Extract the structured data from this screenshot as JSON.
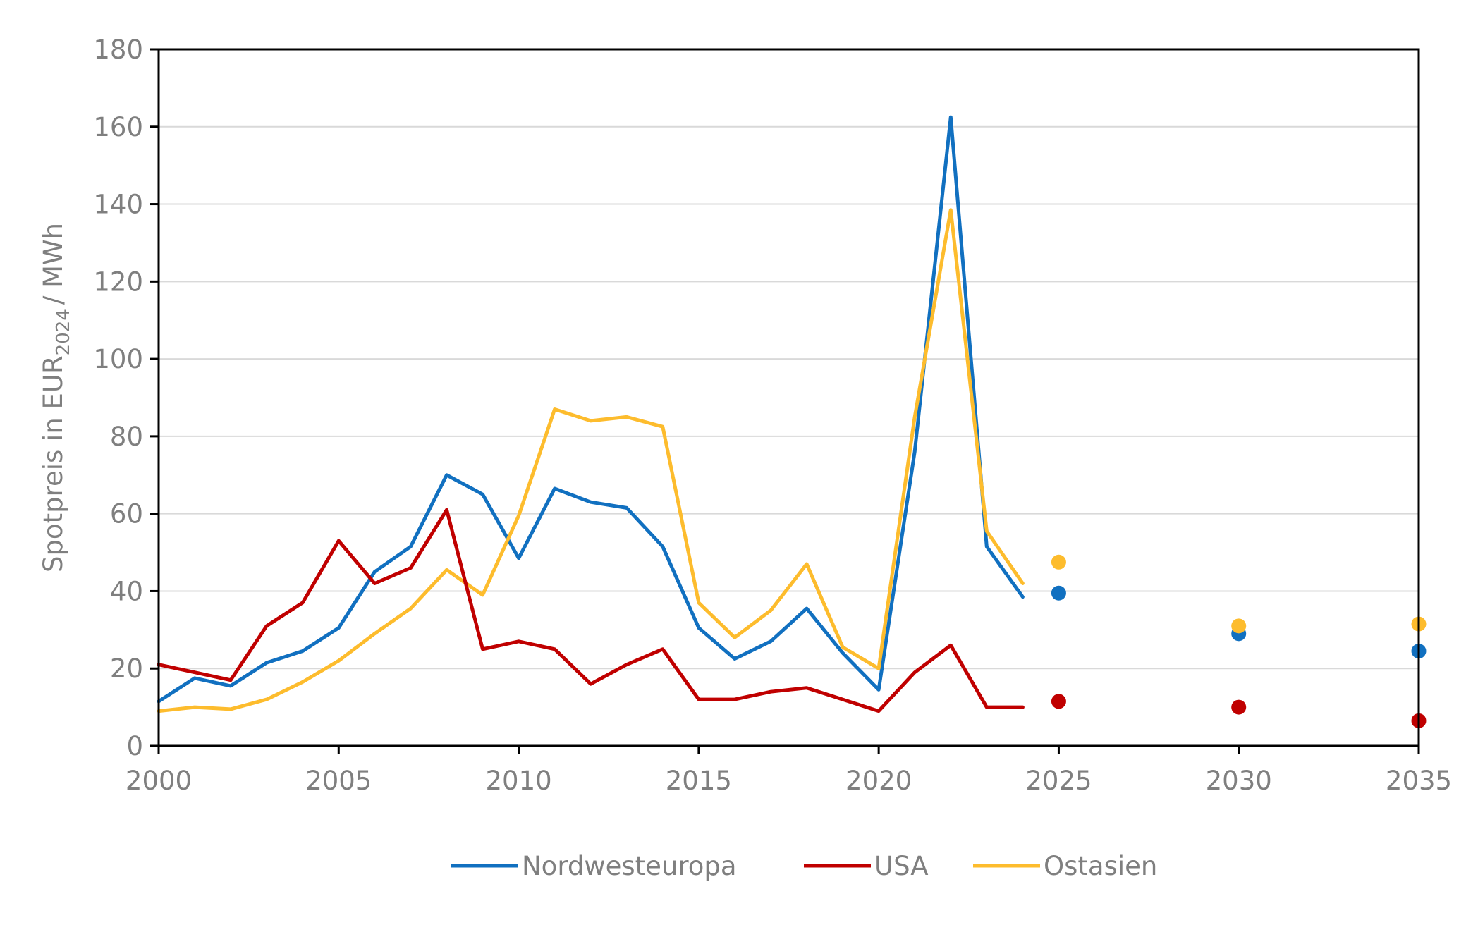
{
  "chart_data": {
    "type": "line",
    "title": "",
    "xlabel": "",
    "ylabel": {
      "prefix": "Spotpreis in EUR",
      "subscript": "2024",
      "suffix": "/ MWh"
    },
    "xlim": [
      2000,
      2035
    ],
    "ylim": [
      0,
      180
    ],
    "xticks": [
      "2000",
      "2005",
      "2010",
      "2015",
      "2020",
      "2025",
      "2030",
      "2035"
    ],
    "yticks": [
      "0",
      "20",
      "40",
      "60",
      "80",
      "100",
      "120",
      "140",
      "160",
      "180"
    ],
    "grid": "horizontal",
    "legend_position": "bottom",
    "x": [
      2000,
      2001,
      2002,
      2003,
      2004,
      2005,
      2006,
      2007,
      2008,
      2009,
      2010,
      2011,
      2012,
      2013,
      2014,
      2015,
      2016,
      2017,
      2018,
      2019,
      2020,
      2021,
      2022,
      2023,
      2024
    ],
    "series": [
      {
        "name": "Nordwesteuropa",
        "color": "#1170c0",
        "values": [
          11.5,
          17.5,
          15.5,
          21.5,
          24.5,
          30.5,
          45,
          51.5,
          70,
          65,
          48.5,
          66.5,
          63,
          61.5,
          51.5,
          30.5,
          22.5,
          27,
          35.5,
          24,
          14.5,
          76,
          162.5,
          51.5,
          38.5
        ],
        "projections": [
          {
            "x": 2025,
            "y": 39.5
          },
          {
            "x": 2030,
            "y": 29
          },
          {
            "x": 2035,
            "y": 24.5
          }
        ]
      },
      {
        "name": "USA",
        "color": "#c00000",
        "values": [
          21,
          19,
          17,
          31,
          37,
          53,
          42,
          46,
          61,
          25,
          27,
          25,
          16,
          21,
          25,
          12,
          12,
          14,
          15,
          12,
          9,
          19,
          26,
          10,
          10
        ],
        "projections": [
          {
            "x": 2025,
            "y": 11.5
          },
          {
            "x": 2030,
            "y": 10
          },
          {
            "x": 2035,
            "y": 6.5
          }
        ]
      },
      {
        "name": "Ostasien",
        "color": "#fdbc2d",
        "values": [
          9,
          10,
          9.5,
          12,
          16.5,
          22,
          29,
          35.5,
          45.5,
          39,
          59.5,
          87,
          84,
          85,
          82.5,
          37,
          28,
          35,
          47,
          25.5,
          20,
          85,
          138.5,
          55.5,
          42
        ],
        "projections": [
          {
            "x": 2025,
            "y": 47.5
          },
          {
            "x": 2030,
            "y": 31
          },
          {
            "x": 2035,
            "y": 31.5
          }
        ]
      }
    ]
  }
}
